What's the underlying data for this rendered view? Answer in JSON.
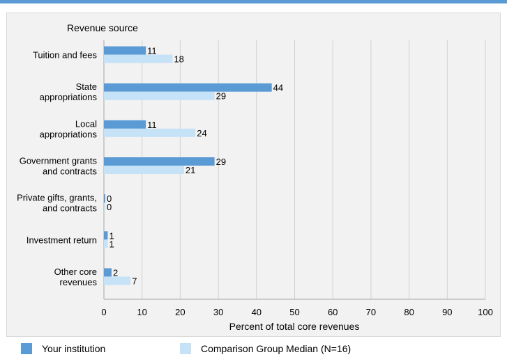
{
  "chart_data": {
    "type": "bar",
    "orientation": "horizontal",
    "category_axis_title": "Revenue source",
    "xlabel": "Percent of total core revenues",
    "xlim": [
      0,
      100
    ],
    "xticks": [
      "0",
      "10",
      "20",
      "30",
      "40",
      "50",
      "60",
      "70",
      "80",
      "90",
      "100"
    ],
    "grid": "vertical",
    "categories": [
      [
        "Tuition and fees"
      ],
      [
        "State",
        "appropriations"
      ],
      [
        "Local",
        "appropriations"
      ],
      [
        "Government grants",
        "and contracts"
      ],
      [
        "Private gifts, grants,",
        "and contracts"
      ],
      [
        "Investment return"
      ],
      [
        "Other core",
        "revenues"
      ]
    ],
    "series": [
      {
        "name": "Your institution",
        "color": "#5a9bd5",
        "values": [
          11,
          44,
          11,
          29,
          0,
          1,
          2
        ]
      },
      {
        "name": "Comparison Group Median (N=16)",
        "color": "#c6e2f7",
        "values": [
          18,
          29,
          24,
          21,
          0,
          1,
          7
        ]
      }
    ],
    "legend_position": "bottom"
  }
}
